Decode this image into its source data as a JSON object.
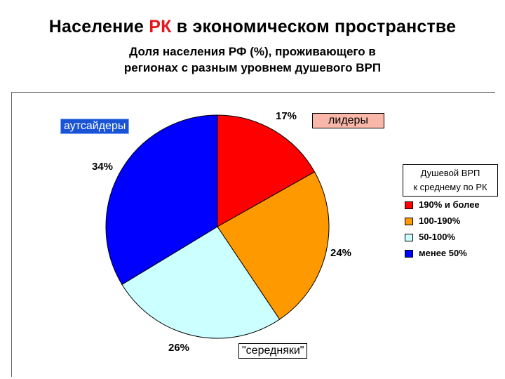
{
  "header": {
    "title_part1": "Население",
    "title_accent": "РК",
    "title_part2": "в экономическом пространстве",
    "subtitle": "Доля населения РФ (%), проживающего в регионах с разным уровнем душевого ВРП"
  },
  "callouts": {
    "outsiders": "аутсайдеры",
    "leaders": "лидеры",
    "middle": "\"середняки\""
  },
  "legend": {
    "title_line1": "Душевой ВРП",
    "title_line2": "к среднему по РК"
  },
  "colors": {
    "accent": "#e8141b"
  },
  "chart_data": {
    "type": "pie",
    "title": "Доля населения РФ (%), проживающего в регионах с разным уровнем душевого ВРП",
    "legend_position": "right",
    "slices": [
      {
        "name": "190% и более",
        "value": 17,
        "label": "17%",
        "color": "#ff0000"
      },
      {
        "name": "100-190%",
        "value": 24,
        "label": "24%",
        "color": "#ff9900"
      },
      {
        "name": "50-100%",
        "value": 26,
        "label": "26%",
        "color": "#ccffff"
      },
      {
        "name": "менее 50%",
        "value": 34,
        "label": "34%",
        "color": "#0000ff"
      }
    ]
  }
}
